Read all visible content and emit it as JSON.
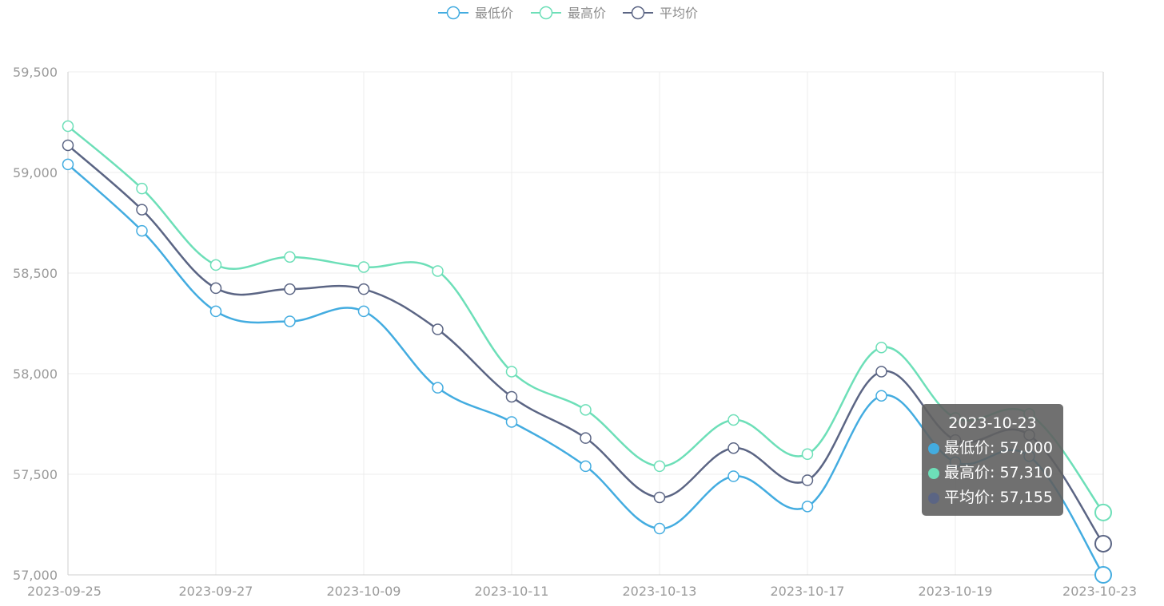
{
  "chart_data": {
    "type": "line",
    "title": "",
    "xlabel": "",
    "ylabel": "",
    "x_tick_labels": [
      "2023-09-25",
      "2023-09-27",
      "2023-10-09",
      "2023-10-11",
      "2023-10-13",
      "2023-10-17",
      "2023-10-19",
      "2023-10-23"
    ],
    "x": [
      "2023-09-25",
      "2023-09-26",
      "2023-09-27",
      "2023-09-28",
      "2023-10-09",
      "2023-10-10",
      "2023-10-11",
      "2023-10-12",
      "2023-10-13",
      "2023-10-16",
      "2023-10-17",
      "2023-10-18",
      "2023-10-19",
      "2023-10-20",
      "2023-10-23"
    ],
    "ylim": [
      57000,
      59500
    ],
    "y_tick_labels": [
      "57,000",
      "57,500",
      "58,000",
      "58,500",
      "59,000",
      "59,500"
    ],
    "y_ticks": [
      57000,
      57500,
      58000,
      58500,
      59000,
      59500
    ],
    "grid": true,
    "smooth": true,
    "legend_position": "top-center",
    "series": [
      {
        "name": "最低价",
        "color": "#43ace0",
        "values": [
          59040,
          58710,
          58310,
          58260,
          58310,
          57930,
          57760,
          57540,
          57230,
          57490,
          57340,
          57890,
          57560,
          57590,
          57000
        ]
      },
      {
        "name": "最高价",
        "color": "#6ddfb8",
        "values": [
          59230,
          58920,
          58540,
          58580,
          58530,
          58510,
          58010,
          57820,
          57540,
          57770,
          57600,
          58130,
          57780,
          57800,
          57310
        ]
      },
      {
        "name": "平均价",
        "color": "#5b6584",
        "values": [
          59135,
          58815,
          58425,
          58420,
          58420,
          58220,
          57885,
          57680,
          57385,
          57630,
          57470,
          58010,
          57670,
          57695,
          57155
        ]
      }
    ],
    "tooltip": {
      "title": "2023-10-23",
      "rows": [
        {
          "label": "最低价: 57,000",
          "color": "#43ace0"
        },
        {
          "label": "最高价: 57,310",
          "color": "#6ddfb8"
        },
        {
          "label": "平均价: 57,155",
          "color": "#5b6584"
        }
      ]
    }
  }
}
